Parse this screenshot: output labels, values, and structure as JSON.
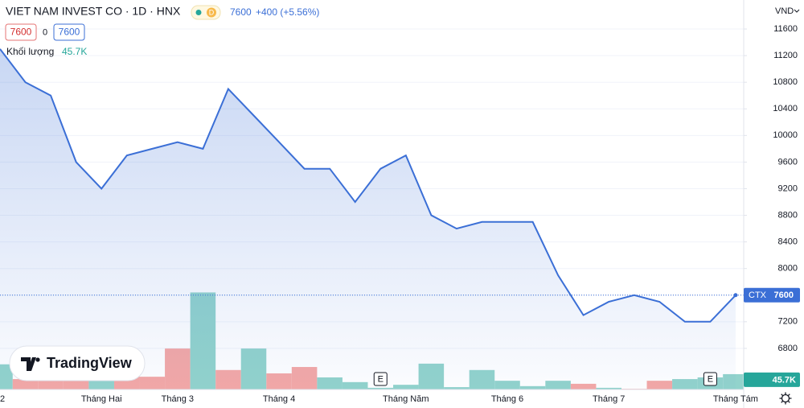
{
  "chart_data": {
    "type": "line",
    "title": "VIET NAM INVEST CO · 1D · HNX",
    "interval_badge": "D",
    "change": "+400 (+5.56%)",
    "box_open": "7600",
    "box_change": "0",
    "box_close": "7600",
    "currency": "VND",
    "symbol": "CTX",
    "logo": "TradingView",
    "categories": [
      "2",
      null,
      null,
      null,
      "Tháng Hai",
      null,
      null,
      "Tháng 3",
      null,
      null,
      null,
      "Tháng 4",
      null,
      null,
      null,
      null,
      "Tháng Năm",
      null,
      null,
      null,
      "Tháng 6",
      null,
      null,
      null,
      "Tháng 7",
      null,
      null,
      null,
      null,
      "Tháng Tám"
    ],
    "series": [
      {
        "name": "CTX",
        "color": "#3b6fd6",
        "values": [
          11300,
          10800,
          10600,
          9600,
          9200,
          9700,
          9800,
          9900,
          9800,
          10700,
          10300,
          9900,
          9500,
          9500,
          9000,
          9500,
          9700,
          8800,
          8600,
          8700,
          8700,
          8700,
          7900,
          7300,
          7500,
          7600,
          7500,
          7200,
          7200,
          7600
        ]
      }
    ],
    "ylim": [
      6182,
      12036
    ],
    "yticks": [
      6800,
      7200,
      7600,
      8000,
      8400,
      8800,
      9200,
      9600,
      10000,
      10400,
      10800,
      11200,
      11600
    ],
    "volume": {
      "name": "Khối lượng",
      "up_color": "#92d3cc",
      "down_color": "#f4a8a6",
      "values": [
        75000,
        31000,
        26000,
        29000,
        43000,
        48000,
        38000,
        122000,
        289000,
        58000,
        122000,
        48000,
        67000,
        36000,
        22000,
        5000,
        14000,
        77000,
        7000,
        58000,
        26000,
        10000,
        26000,
        17000,
        5000,
        2000,
        26000,
        31000,
        36000,
        45700
      ],
      "direction": [
        "up",
        "down",
        "down",
        "down",
        "up",
        "down",
        "down",
        "down",
        "up",
        "down",
        "up",
        "down",
        "down",
        "up",
        "up",
        "up",
        "up",
        "up",
        "up",
        "up",
        "up",
        "up",
        "up",
        "down",
        "up",
        "down",
        "down",
        "up",
        "up",
        "up"
      ],
      "last_label": "45.7K",
      "ylim": [
        0,
        1160000
      ]
    },
    "events": [
      {
        "index": 15,
        "label": "E"
      },
      {
        "index": 28,
        "label": "E"
      }
    ]
  }
}
